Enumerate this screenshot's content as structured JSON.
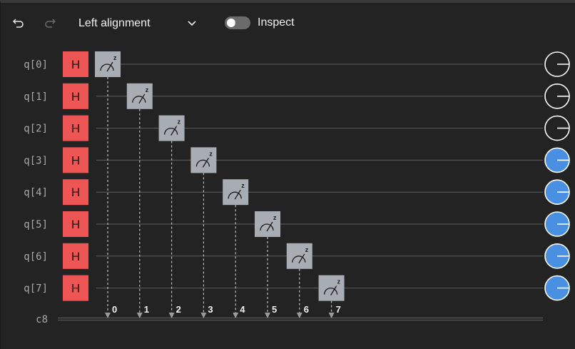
{
  "toolbar": {
    "undo_icon": "undo-icon",
    "redo_icon": "redo-icon",
    "alignment": {
      "selected": "Left alignment",
      "icon": "chevron-down-icon"
    },
    "inspect": {
      "label": "Inspect",
      "enabled": false
    }
  },
  "circuit": {
    "qubits": [
      "q[0]",
      "q[1]",
      "q[2]",
      "q[3]",
      "q[4]",
      "q[5]",
      "q[6]",
      "q[7]"
    ],
    "classical_register": "c8",
    "gates": [
      {
        "type": "H",
        "label": "H",
        "qubit": 0
      },
      {
        "type": "H",
        "label": "H",
        "qubit": 1
      },
      {
        "type": "H",
        "label": "H",
        "qubit": 2
      },
      {
        "type": "H",
        "label": "H",
        "qubit": 3
      },
      {
        "type": "H",
        "label": "H",
        "qubit": 4
      },
      {
        "type": "H",
        "label": "H",
        "qubit": 5
      },
      {
        "type": "H",
        "label": "H",
        "qubit": 6
      },
      {
        "type": "H",
        "label": "H",
        "qubit": 7
      }
    ],
    "measurements": [
      {
        "qubit": 0,
        "bit": "0",
        "basis": "z"
      },
      {
        "qubit": 1,
        "bit": "1",
        "basis": "z"
      },
      {
        "qubit": 2,
        "bit": "2",
        "basis": "z"
      },
      {
        "qubit": 3,
        "bit": "3",
        "basis": "z"
      },
      {
        "qubit": 4,
        "bit": "4",
        "basis": "z"
      },
      {
        "qubit": 5,
        "bit": "5",
        "basis": "z"
      },
      {
        "qubit": 6,
        "bit": "6",
        "basis": "z"
      },
      {
        "qubit": 7,
        "bit": "7",
        "basis": "z"
      }
    ],
    "qubit_outputs": [
      {
        "qubit": 0,
        "active": false
      },
      {
        "qubit": 1,
        "active": false
      },
      {
        "qubit": 2,
        "active": false
      },
      {
        "qubit": 3,
        "active": true
      },
      {
        "qubit": 4,
        "active": true
      },
      {
        "qubit": 5,
        "active": true
      },
      {
        "qubit": 6,
        "active": true
      },
      {
        "qubit": 7,
        "active": true
      }
    ]
  },
  "colors": {
    "h_gate": "#ee5555",
    "measure_gate": "#a8adb3",
    "wire": "#5f5f5f",
    "output_active": "#4a90e2",
    "output_inactive": "#232323"
  }
}
